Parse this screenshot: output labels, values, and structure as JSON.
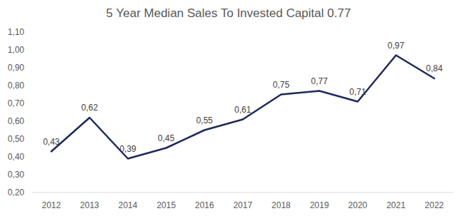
{
  "chart_data": {
    "type": "line",
    "title": "5 Year Median Sales To Invested Capital 0.77",
    "categories": [
      "2012",
      "2013",
      "2014",
      "2015",
      "2016",
      "2017",
      "2018",
      "2019",
      "2020",
      "2021",
      "2022"
    ],
    "values": [
      0.43,
      0.62,
      0.39,
      0.45,
      0.55,
      0.61,
      0.75,
      0.77,
      0.71,
      0.97,
      0.84
    ],
    "value_labels": [
      "0,43",
      "0,62",
      "0,39",
      "0,45",
      "0,55",
      "0,61",
      "0,75",
      "0,77",
      "0,71",
      "0,97",
      "0,84"
    ],
    "color": "#1c2a5b",
    "ylim": [
      0.2,
      1.1
    ],
    "yticks": [
      {
        "value": 0.2,
        "label": "0,20"
      },
      {
        "value": 0.3,
        "label": "0,30"
      },
      {
        "value": 0.4,
        "label": "0,40"
      },
      {
        "value": 0.5,
        "label": "0,50"
      },
      {
        "value": 0.6,
        "label": "0,60"
      },
      {
        "value": 0.7,
        "label": "0,70"
      },
      {
        "value": 0.8,
        "label": "0,80"
      },
      {
        "value": 0.9,
        "label": "0,90"
      },
      {
        "value": 1.0,
        "label": "1,00"
      },
      {
        "value": 1.1,
        "label": "1,10"
      }
    ],
    "grid": false,
    "data_labels": true
  }
}
